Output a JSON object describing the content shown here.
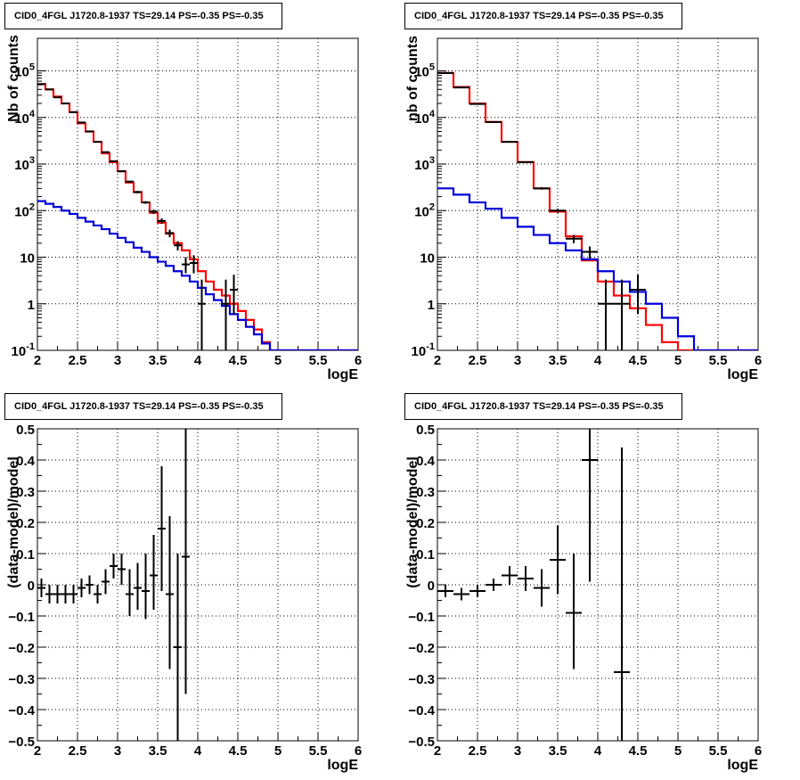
{
  "panels_title": "CID0_4FGL J1720.8-1937 TS=29.14 PS=-0.35 PS=-0.35",
  "colors": {
    "total_model": "#ff0000",
    "source_model": "#0000dd",
    "data": "#000000"
  },
  "chart_data": [
    {
      "type": "line",
      "title": "CID0_4FGL J1720.8-1937 TS=29.14 PS=-0.35 PS=-0.35",
      "xlabel": "logE",
      "ylabel": "Nb of counts",
      "xlim": [
        2,
        6
      ],
      "ylim": [
        0.1,
        500000
      ],
      "yscale": "log",
      "grid": true,
      "xticks": [
        "2",
        "2.5",
        "3",
        "3.5",
        "4",
        "4.5",
        "5",
        "5.5",
        "6"
      ],
      "yticks": [
        "10^-1",
        "1",
        "10",
        "10^2",
        "10^3",
        "10^4",
        "10^5"
      ],
      "bin_edges": [
        2.0,
        2.1,
        2.2,
        2.3,
        2.4,
        2.5,
        2.6,
        2.7,
        2.8,
        2.9,
        3.0,
        3.1,
        3.2,
        3.3,
        3.4,
        3.5,
        3.6,
        3.7,
        3.8,
        3.9,
        4.0,
        4.1,
        4.2,
        4.3,
        4.4,
        4.5,
        4.6,
        4.7,
        4.8,
        4.9,
        5.0,
        5.1,
        5.2,
        5.3,
        5.4,
        5.5,
        5.6,
        5.7,
        5.8,
        5.9,
        6.0
      ],
      "series": [
        {
          "kind": "step",
          "color": "#ff0000",
          "values": [
            52000,
            40000,
            28000,
            20000,
            13000,
            7500,
            5000,
            3000,
            1700,
            1100,
            700,
            400,
            250,
            150,
            90,
            55,
            32,
            20,
            14,
            9,
            5,
            3,
            2,
            1.5,
            1,
            0.7,
            0.45,
            0.28,
            0.15,
            0.1,
            0.1,
            0.1,
            0.1,
            0.1,
            0.1,
            0.1,
            0.1,
            0.1,
            0.1,
            0.1
          ]
        },
        {
          "kind": "step",
          "color": "#0000dd",
          "values": [
            160,
            140,
            120,
            100,
            85,
            70,
            58,
            48,
            40,
            32,
            26,
            21,
            16,
            13,
            10,
            8,
            6.5,
            5,
            4,
            3,
            2.2,
            1.6,
            1.2,
            0.9,
            0.6,
            0.45,
            0.32,
            0.22,
            0.14,
            0.1,
            0.1,
            0.1,
            0.1,
            0.1,
            0.1,
            0.1,
            0.1,
            0.1,
            0.1,
            0.1
          ]
        },
        {
          "kind": "points",
          "color": "#000000",
          "x": [
            2.05,
            2.15,
            2.25,
            2.35,
            2.45,
            2.55,
            2.65,
            2.75,
            2.85,
            2.95,
            3.05,
            3.15,
            3.25,
            3.35,
            3.45,
            3.55,
            3.65,
            3.75,
            3.85,
            3.95,
            4.05,
            4.35,
            4.45
          ],
          "y": [
            52000,
            40000,
            27000,
            20000,
            13000,
            7800,
            5000,
            3000,
            1800,
            1150,
            700,
            420,
            250,
            150,
            95,
            60,
            33,
            18,
            7,
            7.5,
            1,
            1,
            2
          ],
          "xerr": 0.05,
          "ylow": [
            51500,
            39600,
            26700,
            19800,
            12900,
            7700,
            4900,
            2950,
            1760,
            1110,
            670,
            400,
            235,
            140,
            85,
            52,
            27,
            14,
            4.5,
            4.5,
            0.1,
            0.1,
            0.6
          ],
          "yhigh": [
            52500,
            40400,
            27300,
            20200,
            13100,
            7900,
            5100,
            3050,
            1840,
            1190,
            730,
            440,
            265,
            160,
            105,
            68,
            39,
            22,
            10,
            11,
            3.3,
            3.3,
            4.2
          ]
        }
      ]
    },
    {
      "type": "line",
      "title": "CID0_4FGL J1720.8-1937 TS=29.14 PS=-0.35 PS=-0.35",
      "xlabel": "logE",
      "ylabel": "nb of counts",
      "xlim": [
        2,
        6
      ],
      "ylim": [
        0.1,
        500000
      ],
      "yscale": "log",
      "grid": true,
      "xticks": [
        "2",
        "2.5",
        "3",
        "3.5",
        "4",
        "4.5",
        "5",
        "5.5",
        "6"
      ],
      "yticks": [
        "10^-1",
        "1",
        "10",
        "10^2",
        "10^3",
        "10^4",
        "10^5"
      ],
      "bin_edges": [
        2.0,
        2.2,
        2.4,
        2.6,
        2.8,
        3.0,
        3.2,
        3.4,
        3.6,
        3.8,
        4.0,
        4.2,
        4.4,
        4.6,
        4.8,
        5.0,
        5.2,
        5.4,
        5.6,
        5.8,
        6.0
      ],
      "series": [
        {
          "kind": "step",
          "color": "#ff0000",
          "values": [
            90000,
            45000,
            20000,
            8000,
            3000,
            1100,
            300,
            95,
            28,
            8.5,
            3,
            1.5,
            0.8,
            0.35,
            0.15,
            0.1,
            0.1,
            0.1,
            0.1,
            0.1
          ]
        },
        {
          "kind": "step",
          "color": "#0000dd",
          "values": [
            300,
            220,
            150,
            110,
            70,
            45,
            30,
            20,
            14,
            9,
            5,
            3,
            1.8,
            1.0,
            0.5,
            0.2,
            0.1,
            0.1,
            0.1,
            0.1
          ]
        },
        {
          "kind": "points",
          "color": "#000000",
          "x": [
            2.1,
            2.3,
            2.5,
            2.7,
            2.9,
            3.1,
            3.3,
            3.5,
            3.7,
            3.9,
            4.1,
            4.3,
            4.5
          ],
          "y": [
            90000,
            44000,
            19500,
            8000,
            3000,
            1100,
            300,
            100,
            25,
            13,
            1,
            1,
            2
          ],
          "xerr": 0.1,
          "ylow": [
            89700,
            43800,
            19350,
            7900,
            2950,
            1070,
            283,
            90,
            20,
            9.5,
            0.1,
            0.1,
            0.6
          ],
          "yhigh": [
            90300,
            44200,
            19650,
            8100,
            3050,
            1130,
            317,
            110,
            30,
            17,
            3.3,
            3.3,
            4.2
          ]
        }
      ]
    },
    {
      "type": "scatter",
      "title": "CID0_4FGL J1720.8-1937 TS=29.14 PS=-0.35 PS=-0.35",
      "xlabel": "logE",
      "ylabel": "(data-model)/model",
      "xlim": [
        2,
        6
      ],
      "ylim": [
        -0.5,
        0.5
      ],
      "grid": true,
      "xticks": [
        "2",
        "2.5",
        "3",
        "3.5",
        "4",
        "4.5",
        "5",
        "5.5",
        "6"
      ],
      "yticks": [
        "-0.5",
        "-0.4",
        "-0.3",
        "-0.2",
        "-0.1",
        "0",
        "0.1",
        "0.2",
        "0.3",
        "0.4",
        "0.5"
      ],
      "series": [
        {
          "kind": "points",
          "color": "#000000",
          "x": [
            2.05,
            2.15,
            2.25,
            2.35,
            2.45,
            2.55,
            2.65,
            2.75,
            2.85,
            2.95,
            3.05,
            3.15,
            3.25,
            3.35,
            3.45,
            3.55,
            3.65,
            3.75,
            3.85
          ],
          "y": [
            -0.01,
            -0.03,
            -0.03,
            -0.03,
            -0.03,
            -0.01,
            0.0,
            -0.03,
            0.01,
            0.06,
            0.05,
            -0.03,
            -0.01,
            -0.02,
            0.03,
            0.18,
            -0.03,
            -0.2,
            0.09
          ],
          "xerr": 0.05,
          "ylow": [
            -0.04,
            -0.06,
            -0.06,
            -0.06,
            -0.06,
            -0.04,
            -0.03,
            -0.06,
            -0.03,
            0.02,
            0.0,
            -0.1,
            -0.08,
            -0.11,
            -0.08,
            -0.02,
            -0.27,
            -0.55,
            -0.35
          ],
          "yhigh": [
            0.02,
            0.0,
            0.0,
            0.0,
            0.0,
            0.02,
            0.03,
            0.0,
            0.05,
            0.1,
            0.1,
            0.05,
            0.07,
            0.1,
            0.16,
            0.38,
            0.22,
            0.1,
            0.55
          ]
        }
      ]
    },
    {
      "type": "scatter",
      "title": "CID0_4FGL J1720.8-1937 TS=29.14 PS=-0.35 PS=-0.35",
      "xlabel": "logE",
      "ylabel": "(data-model)/model",
      "xlim": [
        2,
        6
      ],
      "ylim": [
        -0.5,
        0.5
      ],
      "grid": true,
      "xticks": [
        "2",
        "2.5",
        "3",
        "3.5",
        "4",
        "4.5",
        "5",
        "5.5",
        "6"
      ],
      "yticks": [
        "-0.5",
        "-0.4",
        "-0.3",
        "-0.2",
        "-0.1",
        "0",
        "0.1",
        "0.2",
        "0.3",
        "0.4",
        "0.5"
      ],
      "series": [
        {
          "kind": "points",
          "color": "#000000",
          "x": [
            2.1,
            2.3,
            2.5,
            2.7,
            2.9,
            3.1,
            3.3,
            3.5,
            3.7,
            3.9,
            4.3
          ],
          "y": [
            -0.02,
            -0.03,
            -0.02,
            0.0,
            0.03,
            0.02,
            -0.01,
            0.08,
            -0.09,
            0.4,
            -0.28
          ],
          "xerr": 0.1,
          "ylow": [
            -0.04,
            -0.05,
            -0.04,
            -0.02,
            0.0,
            -0.02,
            -0.07,
            -0.03,
            -0.27,
            0.01,
            -0.55
          ],
          "yhigh": [
            0.0,
            -0.01,
            0.0,
            0.02,
            0.06,
            0.06,
            0.05,
            0.19,
            0.1,
            0.55,
            0.44
          ]
        }
      ]
    }
  ]
}
